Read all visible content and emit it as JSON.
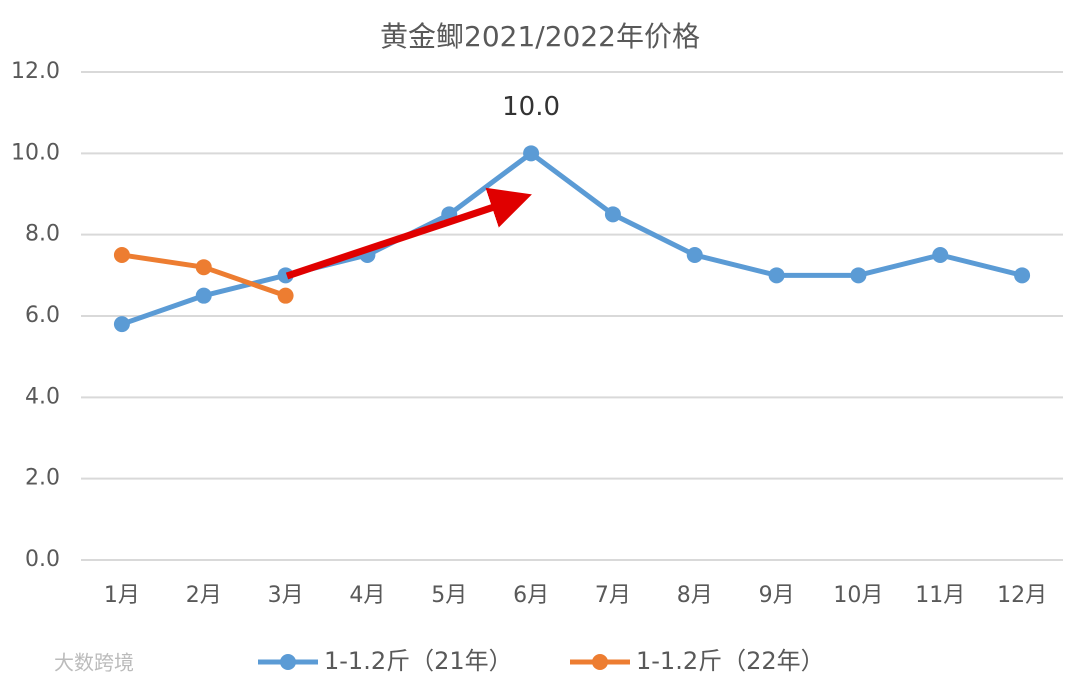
{
  "chart_data": {
    "type": "line",
    "title": "黄金鲫2021/2022年价格",
    "categories": [
      "1月",
      "2月",
      "3月",
      "4月",
      "5月",
      "6月",
      "7月",
      "8月",
      "9月",
      "10月",
      "11月",
      "12月"
    ],
    "series": [
      {
        "name": "1-1.2斤（21年）",
        "color": "#5b9bd5",
        "values": [
          5.8,
          6.5,
          7.0,
          7.5,
          8.5,
          10.0,
          8.5,
          7.5,
          7.0,
          7.0,
          7.5,
          7.0
        ],
        "value_labels": [
          null,
          null,
          null,
          null,
          null,
          "10.0",
          null,
          null,
          null,
          null,
          null,
          null
        ]
      },
      {
        "name": "1-1.2斤（22年）",
        "color": "#ed7d31",
        "values": [
          7.5,
          7.2,
          6.5,
          null,
          null,
          null,
          null,
          null,
          null,
          null,
          null,
          null
        ]
      }
    ],
    "ylim": [
      0,
      12
    ],
    "yticks": [
      {
        "value": 0,
        "label": "0.0"
      },
      {
        "value": 2,
        "label": "2.0"
      },
      {
        "value": 4,
        "label": "4.0"
      },
      {
        "value": 6,
        "label": "6.0"
      },
      {
        "value": 8,
        "label": "8.0"
      },
      {
        "value": 10,
        "label": "10.0"
      },
      {
        "value": 12,
        "label": "12.0"
      }
    ],
    "grid": true,
    "legend": "bottom",
    "watermark": "大数跨境"
  }
}
